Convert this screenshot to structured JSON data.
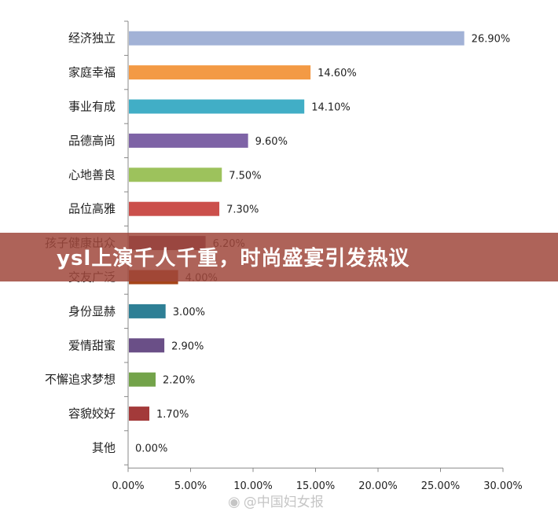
{
  "chart_data": {
    "type": "bar",
    "orientation": "horizontal",
    "categories": [
      "经济独立",
      "家庭幸福",
      "事业有成",
      "品德高尚",
      "心地善良",
      "品位高雅",
      "孩子健康出众",
      "交友广泛",
      "身份显赫",
      "爱情甜蜜",
      "不懈追求梦想",
      "容貌姣好",
      "其他"
    ],
    "values": [
      26.9,
      14.6,
      14.1,
      9.6,
      7.5,
      7.3,
      6.2,
      4.0,
      3.0,
      2.9,
      2.2,
      1.7,
      0.0
    ],
    "value_labels": [
      "26.90%",
      "14.60%",
      "14.10%",
      "9.60%",
      "7.50%",
      "7.30%",
      "6.20%",
      "4.00%",
      "3.00%",
      "2.90%",
      "2.20%",
      "1.70%",
      "0.00%"
    ],
    "colors": [
      "#A2B2D6",
      "#F39A45",
      "#41AEC6",
      "#7E63A6",
      "#9DC25C",
      "#CB4F4B",
      "#7A3C5A",
      "#A6451A",
      "#2E7F95",
      "#6A4F87",
      "#73A34A",
      "#A33A3A",
      "#888888"
    ],
    "xlim": [
      0,
      30
    ],
    "xticks": [
      "0.00%",
      "5.00%",
      "10.00%",
      "15.00%",
      "20.00%",
      "25.00%",
      "30.00%"
    ],
    "grid": false,
    "legend": "none"
  },
  "banner": {
    "text": "ysl上演千人千重，时尚盛宴引发热议"
  },
  "watermark": {
    "icon": "weibo-icon",
    "text": "@中国妇女报"
  }
}
